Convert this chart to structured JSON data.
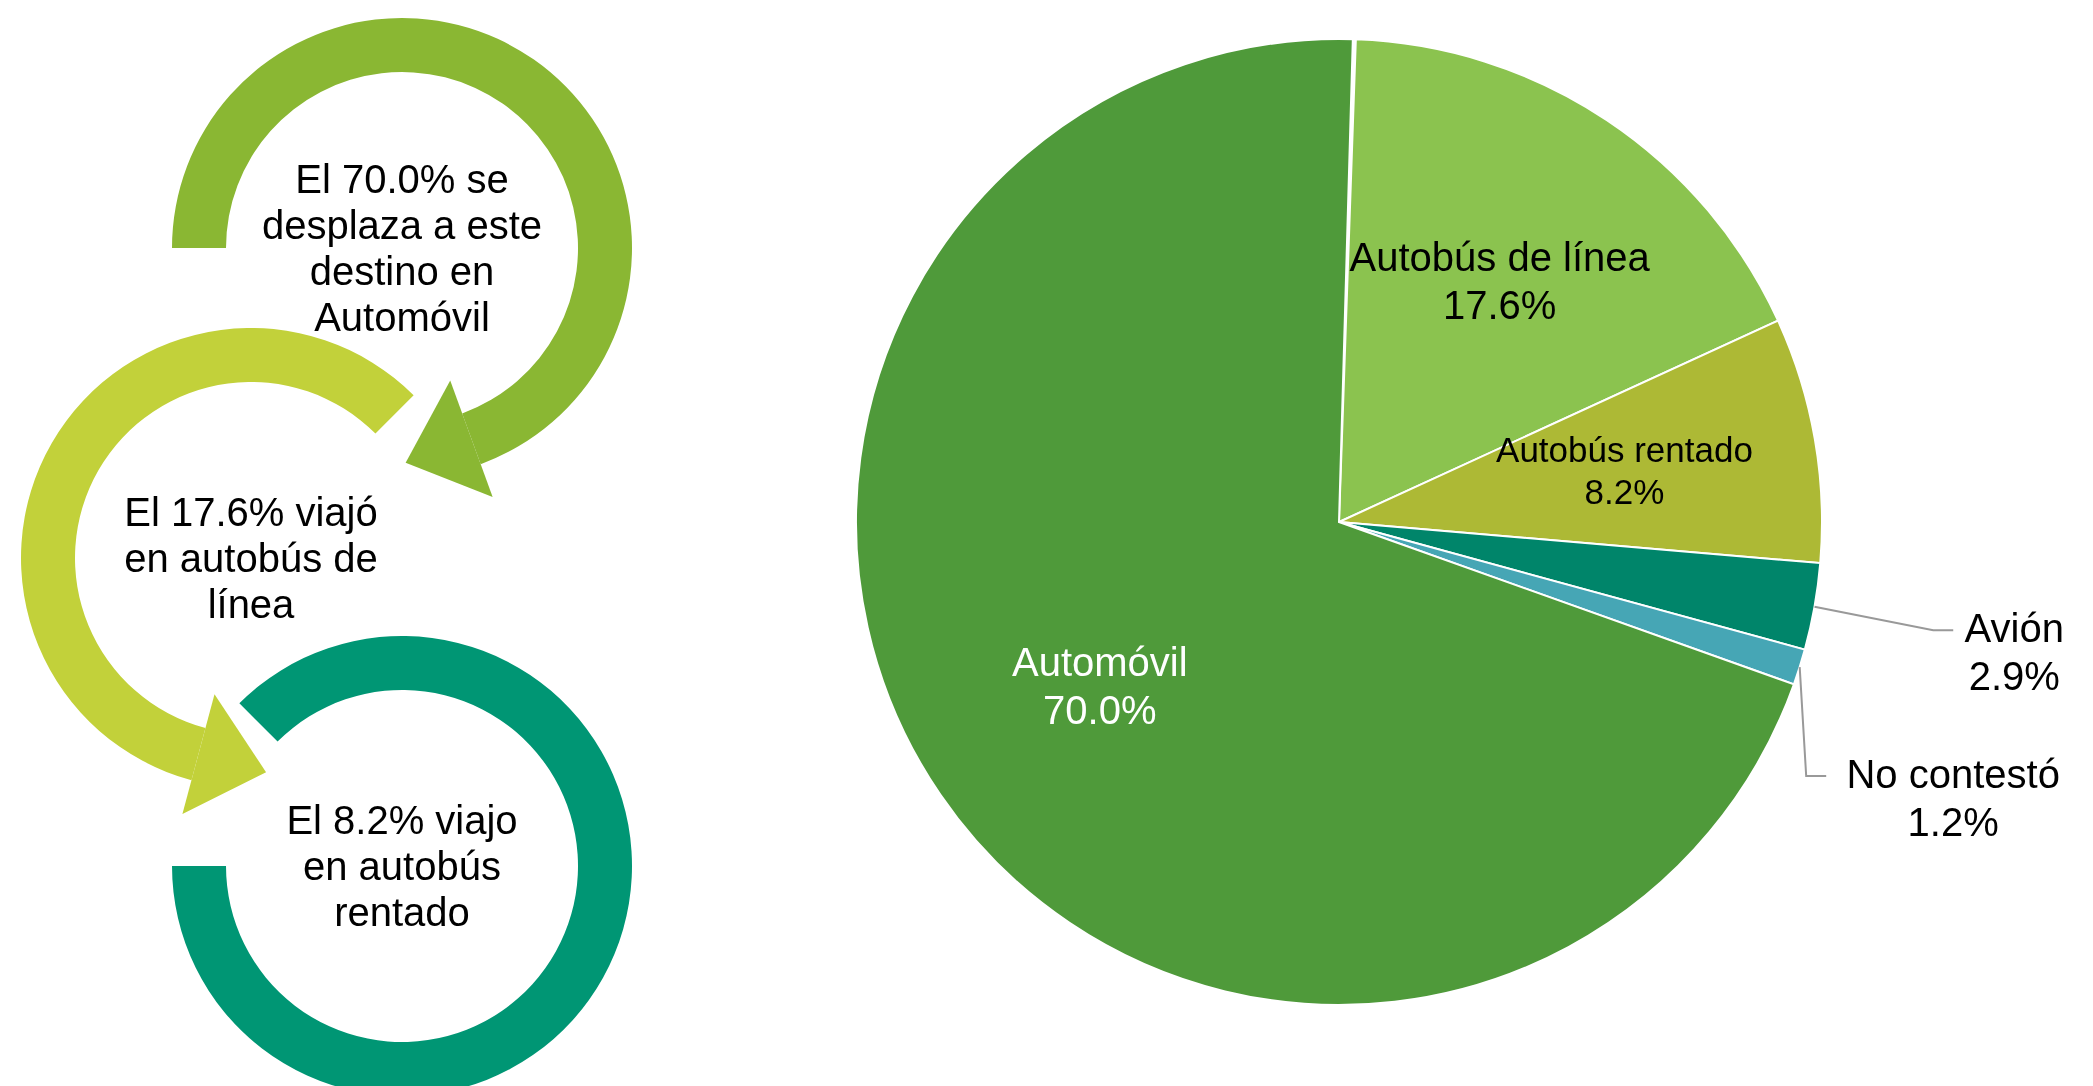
{
  "chart_data": {
    "type": "pie",
    "categories": [
      "Autobús de línea",
      "Autobús rentado",
      "Avión",
      "No contestó",
      "Automóvil"
    ],
    "values": [
      17.6,
      8.2,
      2.9,
      1.2,
      70.0
    ],
    "colors": [
      "#8bc34f",
      "#adb935",
      "#00856a",
      "#46a6b5",
      "#4f9a3a"
    ],
    "value_labels": [
      "17.6%",
      "8.2%",
      "2.9%",
      "1.2%",
      "70.0%"
    ],
    "annotations": [
      "El 70.0% se\ndesplaza a este\ndestino en\nAutomóvil",
      "El 17.6% viajó\nen autobús de\nlínea",
      "El 8.2% viajo\nen autobús\nrentado"
    ]
  }
}
